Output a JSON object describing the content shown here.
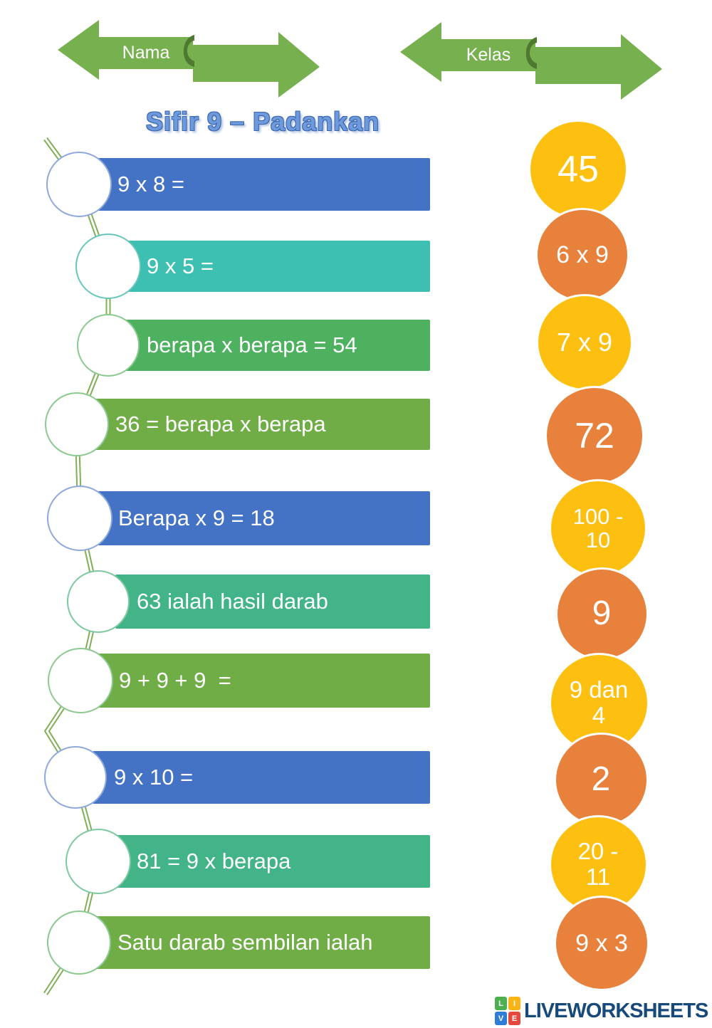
{
  "page": {
    "background": "#ffffff"
  },
  "banners": {
    "nama": {
      "label": "Nama"
    },
    "kelas": {
      "label": "Kelas"
    }
  },
  "title": {
    "text": "Sifir 9 – Padankan"
  },
  "palette": {
    "blue": "#4472C4",
    "teal": "#3DBFB2",
    "green": "#4DB15F",
    "olive": "#70AD47",
    "emerald": "#42B488",
    "yellow": "#FEC010",
    "orange": "#E8813C",
    "banner_green": "#77B04F",
    "banner_curl": "#4E7A30",
    "stem_green": "#7FB055",
    "title_blue": "#6E9ADB",
    "title_outline": "#3A67B1",
    "brand_navy": "#17497B"
  },
  "questions": [
    {
      "text": "9 x 8 =",
      "color": "blue",
      "circle_border": "#8FA8DC"
    },
    {
      "text": "9 x 5 =",
      "color": "teal",
      "circle_border": "#66C6BB"
    },
    {
      "text": "berapa x berapa = 54",
      "color": "green",
      "circle_border": "#8CC98F"
    },
    {
      "text": "36 = berapa x berapa",
      "color": "olive",
      "circle_border": "#8CC98F"
    },
    {
      "text": "Berapa x 9 = 18",
      "color": "blue",
      "circle_border": "#8FA8DC"
    },
    {
      "text": "63 ialah hasil darab",
      "color": "emerald",
      "circle_border": "#7CC9A0"
    },
    {
      "text": "9 + 9 + 9  =",
      "color": "olive",
      "circle_border": "#8CC98F"
    },
    {
      "text": "9 x 10 =",
      "color": "blue",
      "circle_border": "#8FA8DC"
    },
    {
      "text": "81 = 9 x berapa",
      "color": "emerald",
      "circle_border": "#7CC9A0"
    },
    {
      "text": "Satu darab sembilan ialah",
      "color": "olive",
      "circle_border": "#8CC98F"
    }
  ],
  "answers": [
    {
      "lines": [
        "45"
      ],
      "color": "yellow"
    },
    {
      "lines": [
        "6 x 9"
      ],
      "color": "orange"
    },
    {
      "lines": [
        "7 x 9"
      ],
      "color": "yellow"
    },
    {
      "lines": [
        "72"
      ],
      "color": "orange"
    },
    {
      "lines": [
        "100 -",
        "10"
      ],
      "color": "yellow"
    },
    {
      "lines": [
        "9"
      ],
      "color": "orange"
    },
    {
      "lines": [
        "9 dan",
        "4"
      ],
      "color": "yellow"
    },
    {
      "lines": [
        "2"
      ],
      "color": "orange"
    },
    {
      "lines": [
        "20 -",
        "11"
      ],
      "color": "yellow"
    },
    {
      "lines": [
        "9 x 3"
      ],
      "color": "orange"
    }
  ],
  "footer": {
    "brand": "LIVEWORKSHEETS",
    "grid": [
      {
        "letter": "L",
        "color": "#4CAF50"
      },
      {
        "letter": "I",
        "color": "#F9B416"
      },
      {
        "letter": "V",
        "color": "#2E7CD6"
      },
      {
        "letter": "E",
        "color": "#E5483F"
      }
    ]
  }
}
